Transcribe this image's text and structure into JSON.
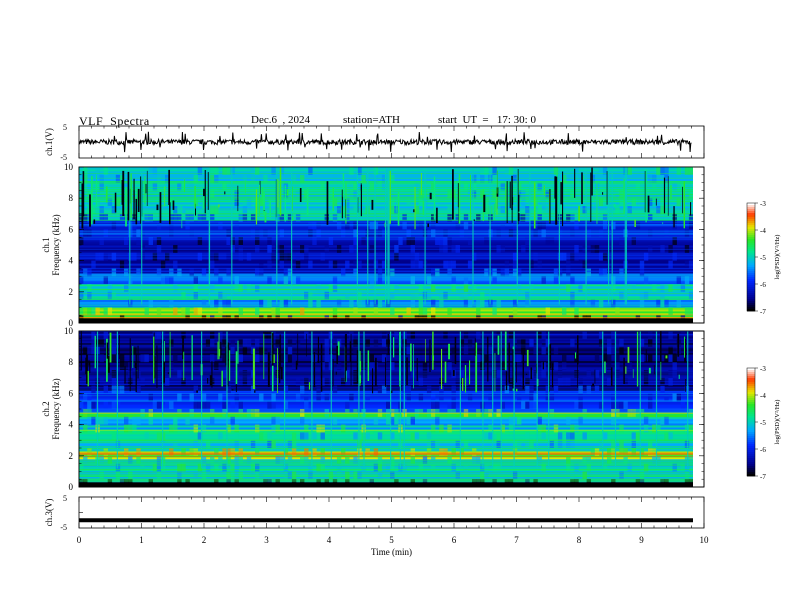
{
  "header": {
    "title": "VLF  Spectra",
    "date": "Dec.6  , 2024",
    "station": "station=ATH",
    "start": "start  UT  =   17: 30: 0"
  },
  "chart_data": [
    {
      "type": "line",
      "panel": "ch1-waveform",
      "ylabel": "ch.1(V)",
      "ylim": [
        -5,
        5
      ],
      "yticks": [
        "5",
        "-5"
      ],
      "xlim": [
        0,
        10
      ],
      "baseline": 0,
      "description_values": {
        "typical_amplitude_V": 1,
        "spike_min_V": -3,
        "spike_max_V": 3
      }
    },
    {
      "type": "heatmap",
      "panel": "ch1-spectrogram",
      "ylabel": "ch.1\nFrequency (kHz)",
      "ylabel_line1": "ch.1",
      "ylabel_line2": "Frequency (kHz)",
      "ylim": [
        0,
        10
      ],
      "yticks": [
        "0",
        "2",
        "4",
        "6",
        "8",
        "10"
      ],
      "xlim": [
        0,
        10
      ],
      "colorbar": {
        "label": "log(PSD)(V²/Hz)",
        "ticks": [
          "-3",
          "-4",
          "-5",
          "-6",
          "-7"
        ],
        "range": [
          -7,
          -3
        ]
      },
      "bands_khz": [
        {
          "f0": 0.0,
          "f1": 0.3,
          "level": -7
        },
        {
          "f0": 0.3,
          "f1": 1.0,
          "level": -4.2
        },
        {
          "f0": 1.0,
          "f1": 1.5,
          "level": -5.4
        },
        {
          "f0": 1.5,
          "f1": 2.5,
          "level": -5.0
        },
        {
          "f0": 2.5,
          "f1": 3.2,
          "level": -5.7
        },
        {
          "f0": 3.2,
          "f1": 5.5,
          "level": -6.4
        },
        {
          "f0": 5.5,
          "f1": 6.6,
          "level": -6.1
        },
        {
          "f0": 6.6,
          "f1": 7.0,
          "level": -5.2
        },
        {
          "f0": 7.0,
          "f1": 10.0,
          "level": -5.1
        }
      ]
    },
    {
      "type": "heatmap",
      "panel": "ch2-spectrogram",
      "ylabel": "ch.2\nFrequency (kHz)",
      "ylabel_line1": "ch.2",
      "ylabel_line2": "Frequency (kHz)",
      "ylim": [
        0,
        10
      ],
      "yticks": [
        "0",
        "2",
        "4",
        "6",
        "8",
        "10"
      ],
      "xlim": [
        0,
        10
      ],
      "colorbar": {
        "label": "log(PSD)(V²/Hz)",
        "ticks": [
          "-3",
          "-4",
          "-5",
          "-6",
          "-7"
        ],
        "range": [
          -7,
          -3
        ]
      },
      "bands_khz": [
        {
          "f0": 0.0,
          "f1": 0.3,
          "level": -7
        },
        {
          "f0": 0.3,
          "f1": 1.8,
          "level": -5.0
        },
        {
          "f0": 1.8,
          "f1": 2.3,
          "level": -4.1
        },
        {
          "f0": 2.3,
          "f1": 3.4,
          "level": -5.1
        },
        {
          "f0": 3.4,
          "f1": 3.7,
          "level": -4.5
        },
        {
          "f0": 3.7,
          "f1": 4.5,
          "level": -5.3
        },
        {
          "f0": 4.5,
          "f1": 4.8,
          "level": -4.4
        },
        {
          "f0": 4.8,
          "f1": 6.2,
          "level": -6.0
        },
        {
          "f0": 6.2,
          "f1": 10.0,
          "level": -6.6
        }
      ]
    },
    {
      "type": "line",
      "panel": "ch3-waveform",
      "ylabel": "ch.3(V)",
      "ylim": [
        -5,
        5
      ],
      "yticks": [
        "5",
        "-5"
      ],
      "xlim": [
        0,
        10
      ],
      "baseline": -2.5
    }
  ],
  "x_axis": {
    "label": "Time  (min)",
    "ticks": [
      "0",
      "1",
      "2",
      "3",
      "4",
      "5",
      "6",
      "7",
      "8",
      "9",
      "10"
    ]
  }
}
